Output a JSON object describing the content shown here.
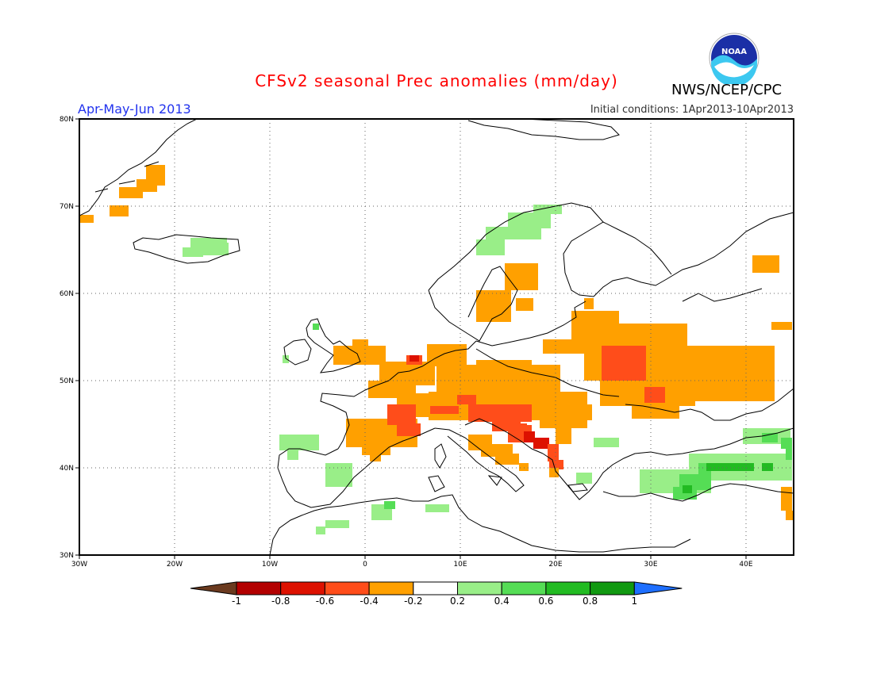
{
  "title": "CFSv2 seasonal Prec anomalies (mm/day)",
  "period": "Apr-May-Jun 2013",
  "initial_conditions": "Initial conditions: 1Apr2013-10Apr2013",
  "agency": "NWS/NCEP/CPC",
  "logo_text": "NOAA",
  "lat_ticks": [
    "80N",
    "70N",
    "60N",
    "50N",
    "40N",
    "30N"
  ],
  "lon_ticks": [
    "30W",
    "20W",
    "10W",
    "0",
    "10E",
    "20E",
    "30E",
    "40E"
  ],
  "colorbar": {
    "labels": [
      "-1",
      "-0.8",
      "-0.6",
      "-0.4",
      "-0.2",
      "0.2",
      "0.4",
      "0.6",
      "0.8",
      "1"
    ],
    "colors": [
      "#6b3a1f",
      "#b30000",
      "#dd1100",
      "#ff4d1a",
      "#ffa000",
      "#ffffff",
      "#99ee88",
      "#55dd55",
      "#22bb22",
      "#119911",
      "#1e6fff"
    ]
  },
  "anomaly_colors": {
    "o": "#ffa000",
    "r": "#ff4d1a",
    "d": "#dd1100",
    "g": "#99ee88",
    "G": "#55dd55",
    "D": "#22bb22"
  }
}
